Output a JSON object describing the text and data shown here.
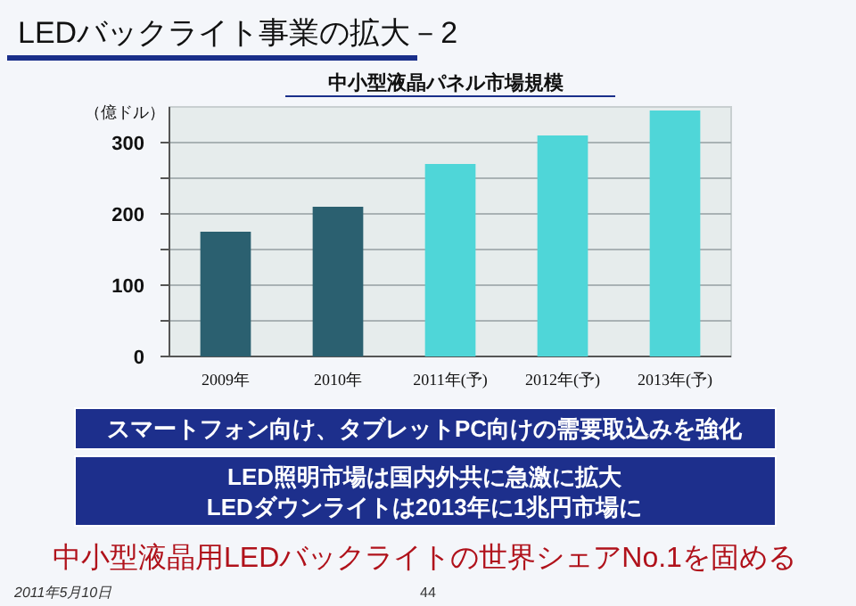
{
  "chart_data": {
    "type": "bar",
    "title": "LEDバックライト事業の拡大－2",
    "subtitle": "中小型液晶パネル市場規模",
    "ylabel": "（億ドル）",
    "categories": [
      "2009年",
      "2010年",
      "2011年(予)",
      "2012年(予)",
      "2013年(予)"
    ],
    "values": [
      175,
      210,
      270,
      310,
      345
    ],
    "colors": [
      "#2b6070",
      "#2b6070",
      "#4fd6d8",
      "#4fd6d8",
      "#4fd6d8"
    ],
    "ylim": [
      0,
      350
    ],
    "yticks": [
      0,
      {
        "value": 50,
        "label": null
      },
      100,
      {
        "value": 150,
        "label": null
      },
      200,
      {
        "value": 250,
        "label": null
      },
      300
    ],
    "grid": "y",
    "annotations": [
      "スマートフォン向け、タブレットPC向けの需要取込みを強化",
      "LED照明市場は国内外共に急激に拡大",
      "LEDダウンライトは2013年に1兆円市場に",
      "中小型液晶用LEDバックライトの世界シェアNo.1を固める",
      "2011年5月10日",
      "44"
    ]
  }
}
